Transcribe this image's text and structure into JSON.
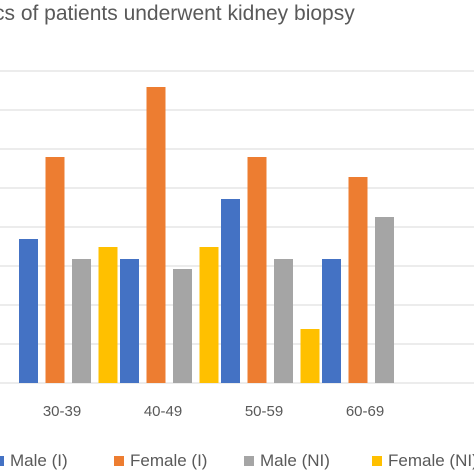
{
  "chart_data": {
    "type": "bar",
    "title": "cs of patients underwent kidney biopsy",
    "categories": [
      "30-39",
      "40-49",
      "50-59",
      "60-69"
    ],
    "series": [
      {
        "name": "Male (I)",
        "color": "#4472C4",
        "values": [
          7.2,
          6.2,
          9.2,
          6.2
        ]
      },
      {
        "name": "Female (I)",
        "color": "#ED7D31",
        "values": [
          11.3,
          14.8,
          11.3,
          10.3
        ]
      },
      {
        "name": "Male (NI)",
        "color": "#A5A5A5",
        "values": [
          6.2,
          5.7,
          6.2,
          8.3
        ]
      },
      {
        "name": "Female (NI)",
        "color": "#FFC000",
        "values": [
          6.8,
          6.8,
          2.7,
          null
        ]
      }
    ],
    "ylim": [
      0,
      17.5
    ],
    "grid": true,
    "legend_position": "bottom"
  }
}
